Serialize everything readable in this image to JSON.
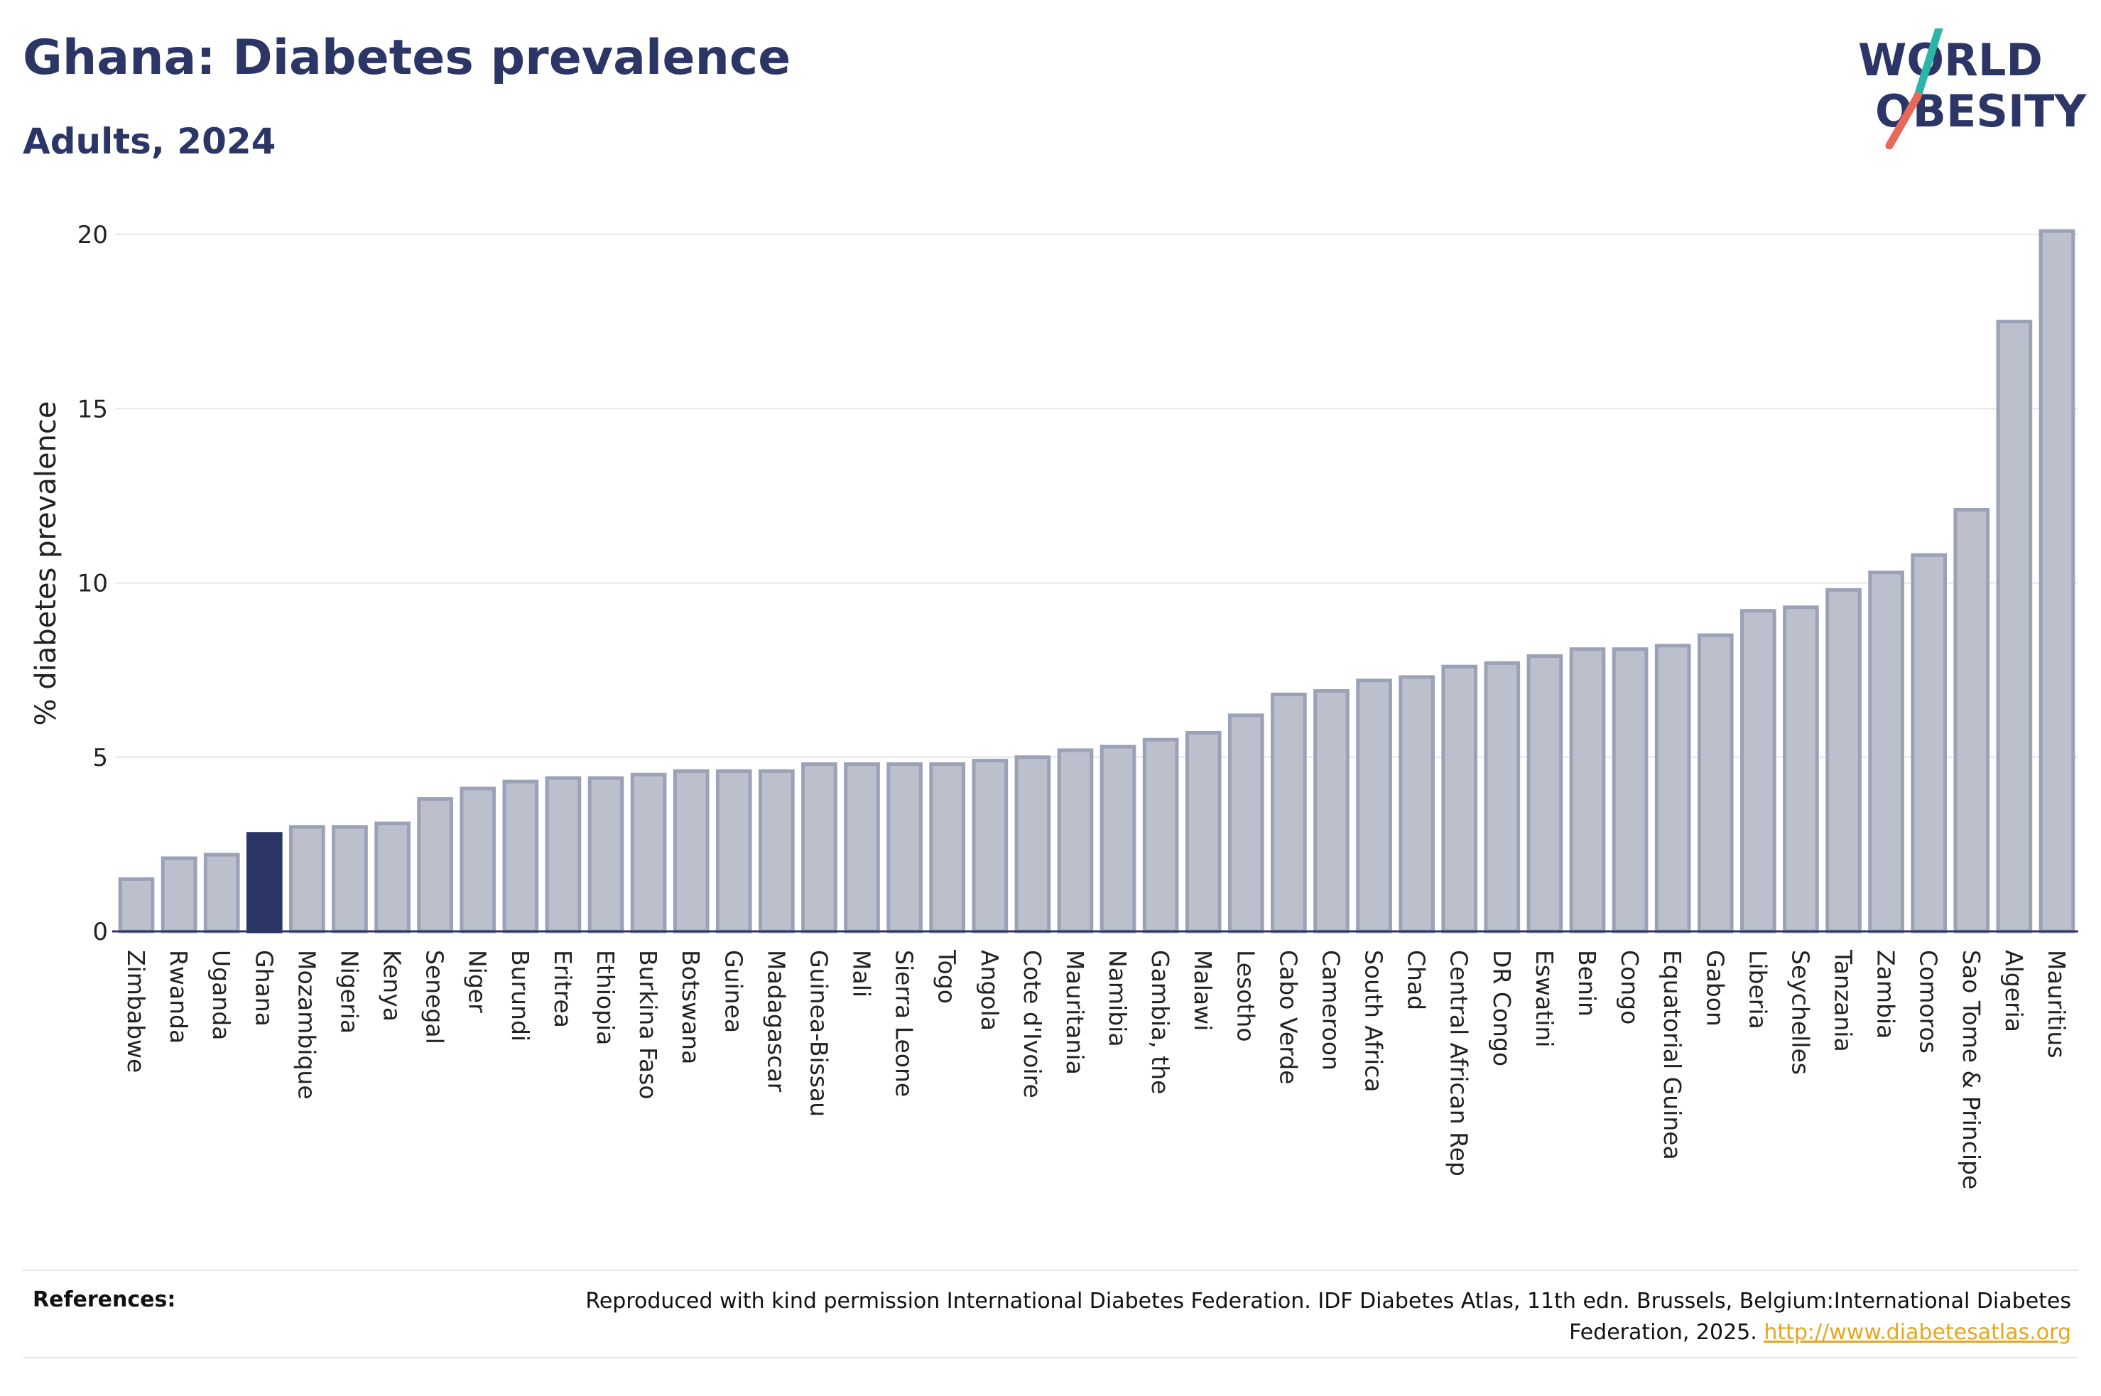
{
  "header": {
    "title": "Ghana: Diabetes prevalence",
    "subtitle": "Adults, 2024"
  },
  "logo": {
    "line1": "WORLD",
    "line2": "OBESITY",
    "colors": {
      "text": "#2c3666",
      "slash_top": "#2bb5a8",
      "slash_bottom": "#e8685a"
    }
  },
  "chart_data": {
    "type": "bar",
    "ylabel": "% diabetes prevalence",
    "xlabel": "",
    "ylim": [
      0,
      20.5
    ],
    "yticks": [
      0,
      5,
      10,
      15,
      20
    ],
    "grid": true,
    "highlight": "Ghana",
    "colors": {
      "bar": "#bcc0cd",
      "bar_edge": "#9ba1b6",
      "highlight": "#2c3666",
      "grid": "#e6e6e6",
      "axis": "#2c3666"
    },
    "categories": [
      "Zimbabwe",
      "Rwanda",
      "Uganda",
      "Ghana",
      "Mozambique",
      "Nigeria",
      "Kenya",
      "Senegal",
      "Niger",
      "Burundi",
      "Eritrea",
      "Ethiopia",
      "Burkina Faso",
      "Botswana",
      "Guinea",
      "Madagascar",
      "Guinea-Bissau",
      "Mali",
      "Sierra Leone",
      "Togo",
      "Angola",
      "Cote d'Ivoire",
      "Mauritania",
      "Namibia",
      "Gambia, the",
      "Malawi",
      "Lesotho",
      "Cabo Verde",
      "Cameroon",
      "South Africa",
      "Chad",
      "Central African Rep",
      "DR Congo",
      "Eswatini",
      "Benin",
      "Congo",
      "Equatorial Guinea",
      "Gabon",
      "Liberia",
      "Seychelles",
      "Tanzania",
      "Zambia",
      "Comoros",
      "Sao Tome & Principe",
      "Algeria",
      "Mauritius"
    ],
    "values": [
      1.5,
      2.1,
      2.2,
      2.8,
      3.0,
      3.0,
      3.1,
      3.8,
      4.1,
      4.3,
      4.4,
      4.4,
      4.5,
      4.6,
      4.6,
      4.6,
      4.8,
      4.8,
      4.8,
      4.8,
      4.9,
      5.0,
      5.2,
      5.3,
      5.5,
      5.7,
      6.2,
      6.8,
      6.9,
      7.2,
      7.3,
      7.6,
      7.7,
      7.9,
      8.1,
      8.1,
      8.2,
      8.5,
      9.2,
      9.3,
      9.8,
      10.3,
      10.8,
      12.1,
      17.5,
      20.1
    ]
  },
  "references": {
    "label": "References:",
    "text": "Reproduced with kind permission International Diabetes Federation. IDF Diabetes Atlas, 11th edn. Brussels, Belgium:International Diabetes Federation, 2025.",
    "link_text": "http://www.diabetesatlas.org"
  }
}
